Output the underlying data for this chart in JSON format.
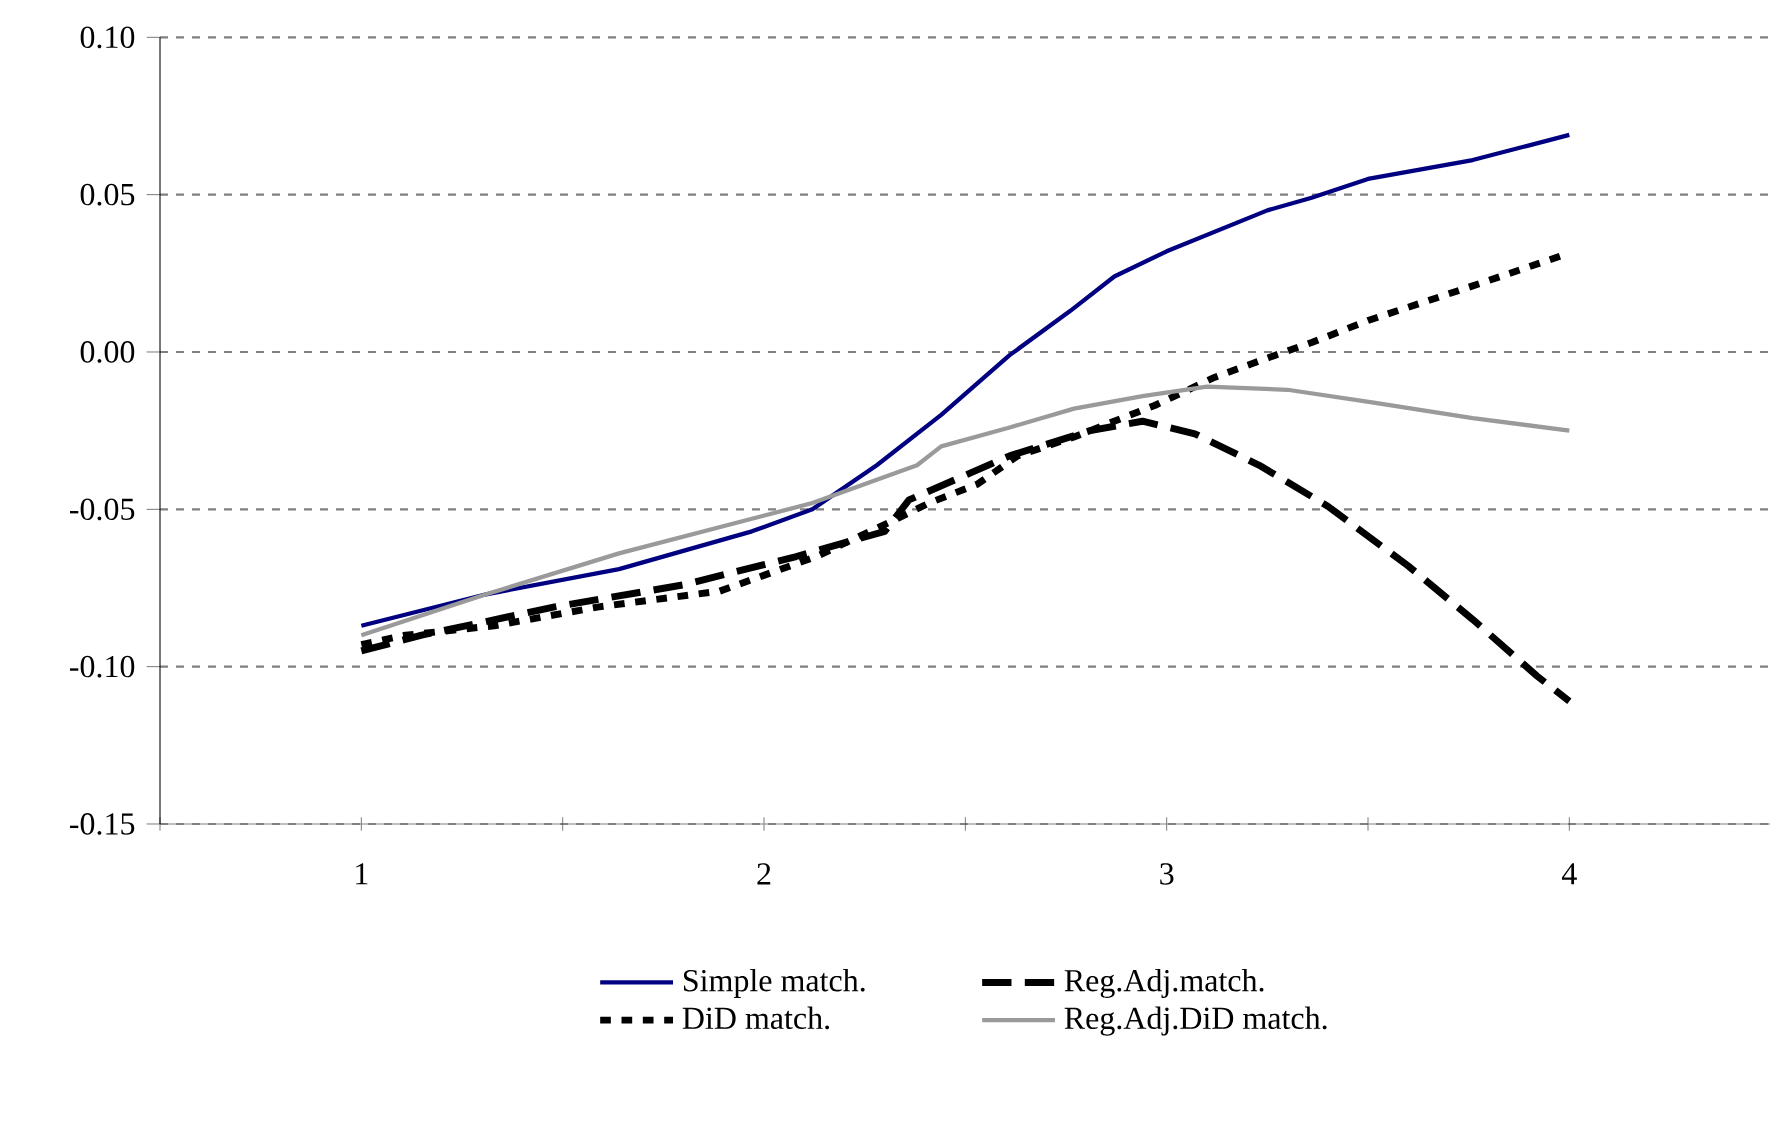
{
  "chart_data": {
    "type": "line",
    "xlim": [
      0.5,
      4.5
    ],
    "xticks": [
      {
        "value": 0.5,
        "label": null
      },
      1,
      {
        "value": 1.5,
        "label": null
      },
      2,
      {
        "value": 2.5,
        "label": null
      },
      3,
      {
        "value": 3.5,
        "label": null
      },
      4,
      {
        "value": 4.5,
        "label": null
      }
    ],
    "ylim": [
      -0.15,
      0.1
    ],
    "yticks": [
      {
        "value": -0.15,
        "label": "-0.15"
      },
      {
        "value": -0.1,
        "label": "-0.10"
      },
      {
        "value": -0.05,
        "label": "-0.05"
      },
      {
        "value": 0,
        "label": "0.00"
      },
      {
        "value": 0.05,
        "label": "0.05"
      },
      {
        "value": 0.1,
        "label": "0.10"
      }
    ],
    "grid": "y",
    "legend": "bottom",
    "marker": "none",
    "series": [
      {
        "name": "Simple match.",
        "color": "#000080",
        "line_style": "solid",
        "x": [
          1,
          1.31,
          1.64,
          1.97,
          2.12,
          2.28,
          2.44,
          2.61,
          2.76,
          2.87,
          3.0,
          3.25,
          3.36,
          3.5,
          3.76,
          4
        ],
        "values": [
          -0.087,
          -0.077,
          -0.069,
          -0.057,
          -0.05,
          -0.036,
          -0.02,
          -0.001,
          0.013,
          0.024,
          0.032,
          0.045,
          0.049,
          0.055,
          0.061,
          0.069
        ]
      },
      {
        "name": "Reg.Adj.match.",
        "color": "#000000",
        "line_style": "dashed",
        "x": [
          1,
          1.15,
          1.48,
          1.8,
          2.08,
          2.3,
          2.36,
          2.61,
          2.81,
          2.94,
          3.07,
          3.23,
          3.4,
          3.6,
          3.76,
          3.92,
          4
        ],
        "values": [
          -0.095,
          -0.09,
          -0.081,
          -0.074,
          -0.065,
          -0.057,
          -0.047,
          -0.033,
          -0.025,
          -0.022,
          -0.026,
          -0.036,
          -0.049,
          -0.068,
          -0.085,
          -0.103,
          -0.111
        ]
      },
      {
        "name": "DiD match.",
        "color": "#000000",
        "line_style": "dotted",
        "x": [
          1,
          1.11,
          1.33,
          1.59,
          1.89,
          2.13,
          2.33,
          2.41,
          2.53,
          2.63,
          2.77,
          2.97,
          3.12,
          3.27,
          3.36,
          3.5,
          3.76,
          3.99
        ],
        "values": [
          -0.093,
          -0.09,
          -0.087,
          -0.081,
          -0.076,
          -0.065,
          -0.053,
          -0.048,
          -0.042,
          -0.033,
          -0.027,
          -0.017,
          -0.008,
          -0.001,
          0.003,
          0.01,
          0.021,
          0.031
        ]
      },
      {
        "name": "Reg.Adj.DiD match.",
        "color": "#9a9a9a",
        "line_style": "solid",
        "x": [
          1,
          1.31,
          1.64,
          1.97,
          2.12,
          2.38,
          2.44,
          2.61,
          2.77,
          2.94,
          3.1,
          3.3,
          3.51,
          3.76,
          4
        ],
        "values": [
          -0.09,
          -0.077,
          -0.064,
          -0.053,
          -0.048,
          -0.036,
          -0.03,
          -0.024,
          -0.018,
          -0.014,
          -0.011,
          -0.012,
          -0.016,
          -0.021,
          -0.025
        ]
      }
    ]
  }
}
